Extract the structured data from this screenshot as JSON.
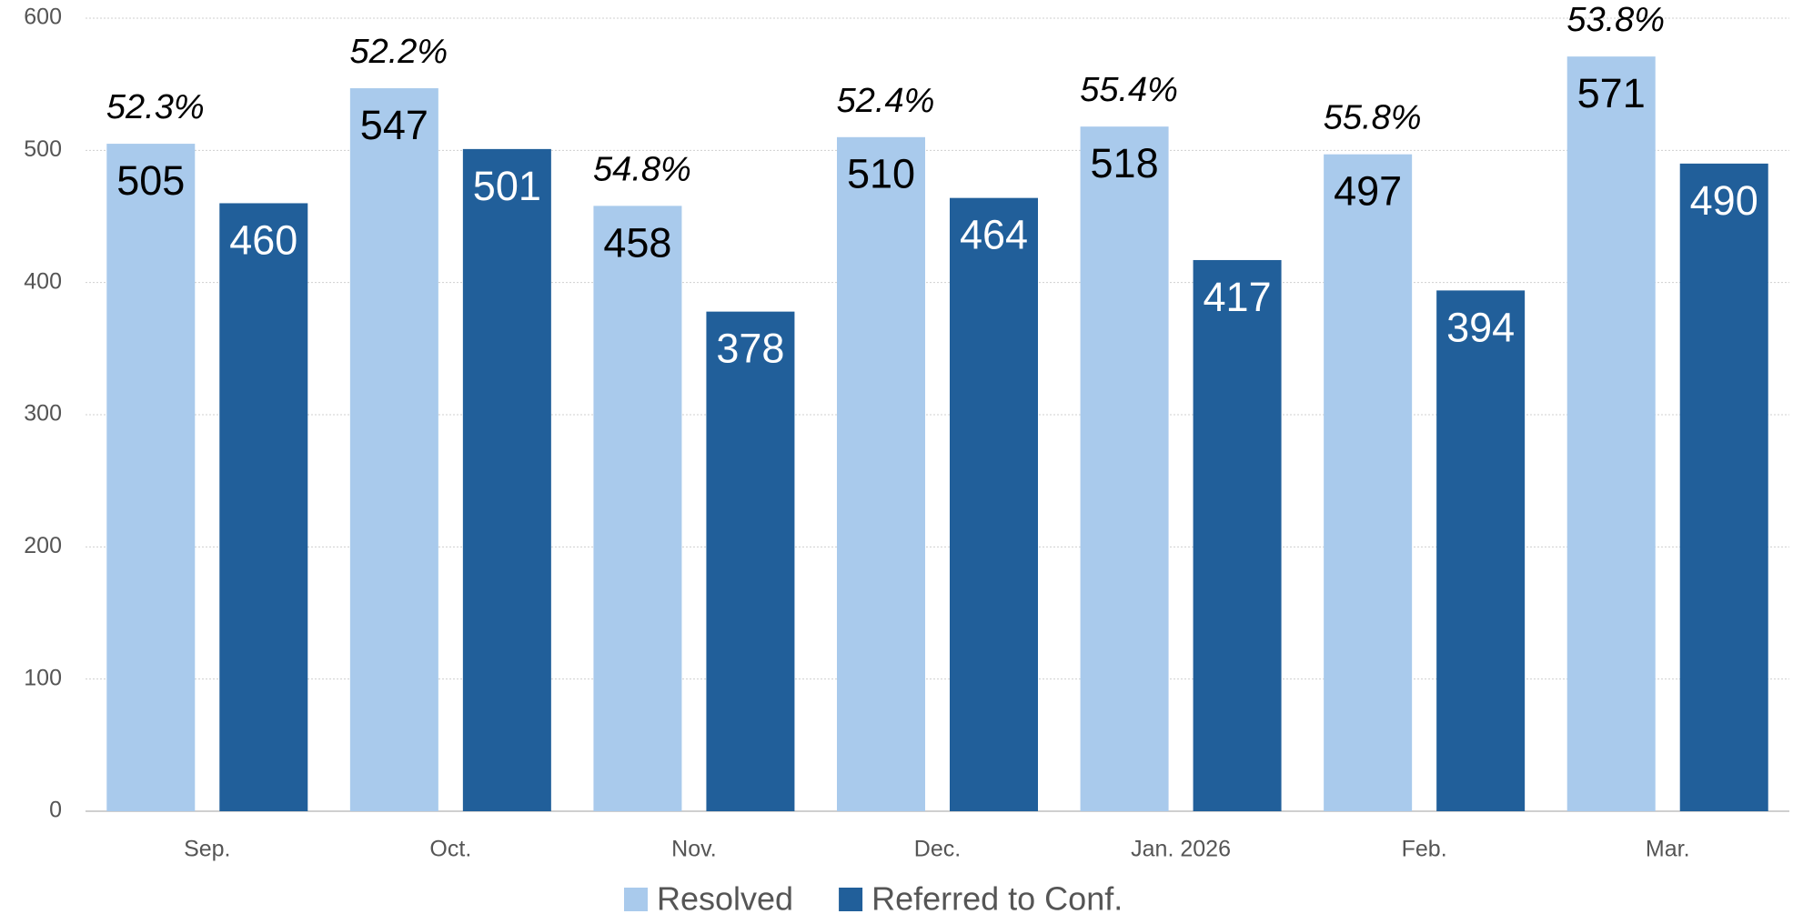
{
  "chart_data": {
    "type": "bar",
    "categories": [
      "Sep.",
      "Oct.",
      "Nov.",
      "Dec.",
      "Jan. 2026",
      "Feb.",
      "Mar."
    ],
    "series": [
      {
        "name": "Resolved",
        "color": "#a9caec",
        "values": [
          505,
          547,
          458,
          510,
          518,
          497,
          571
        ]
      },
      {
        "name": "Referred to Conf.",
        "color": "#215f9a",
        "values": [
          460,
          501,
          378,
          464,
          417,
          394,
          490
        ]
      }
    ],
    "annotations": [
      "52.3%",
      "52.2%",
      "54.8%",
      "52.4%",
      "55.4%",
      "55.8%",
      "53.8%"
    ],
    "ylim": [
      0,
      600
    ],
    "yticks": [
      0,
      100,
      200,
      300,
      400,
      500,
      600
    ],
    "grid": true,
    "legend": "bottom"
  }
}
